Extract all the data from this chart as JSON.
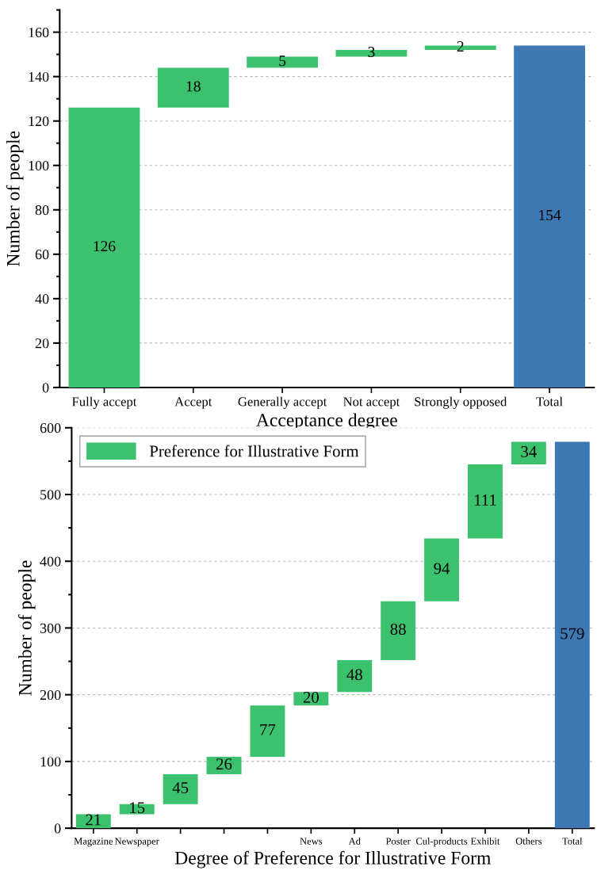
{
  "chart_data": [
    {
      "type": "bar",
      "xlabel": "Acceptance degree",
      "ylabel": "Number of people",
      "categories": [
        "Fully accept",
        "Accept",
        "Generally accept",
        "Not accept",
        "Strongly opposed",
        "Total"
      ],
      "values": [
        126,
        18,
        5,
        3,
        2,
        154
      ],
      "base": [
        0,
        126,
        144,
        149,
        152,
        0
      ],
      "colors": [
        "#3cc26e",
        "#3cc26e",
        "#3cc26e",
        "#3cc26e",
        "#3cc26e",
        "#3d78b5"
      ],
      "ylim": [
        0,
        170
      ],
      "yticks": [
        0,
        20,
        40,
        60,
        80,
        100,
        120,
        140,
        160
      ],
      "grid": "y",
      "data_labels": true
    },
    {
      "type": "bar",
      "xlabel": "Degree of Preference for Illustrative Form",
      "ylabel": "Number of people",
      "categories": [
        "Magazine",
        "Newspaper",
        null,
        null,
        null,
        "News",
        "Ad",
        "Poster",
        "Cul-products",
        "Exhibit",
        "Others",
        "Total"
      ],
      "series": [
        {
          "name": "Preference for Illustrative Form",
          "values": [
            21,
            15,
            45,
            26,
            77,
            20,
            48,
            88,
            94,
            111,
            34,
            579
          ],
          "base": [
            0,
            21,
            36,
            81,
            107,
            184,
            204,
            252,
            340,
            434,
            545,
            0
          ],
          "colors": [
            "#3cc26e",
            "#3cc26e",
            "#3cc26e",
            "#3cc26e",
            "#3cc26e",
            "#3cc26e",
            "#3cc26e",
            "#3cc26e",
            "#3cc26e",
            "#3cc26e",
            "#3cc26e",
            "#3d78b5"
          ]
        }
      ],
      "ylim": [
        0,
        600
      ],
      "yticks": [
        0,
        100,
        200,
        300,
        400,
        500,
        600
      ],
      "grid": "y",
      "legend": "top left",
      "data_labels": true
    }
  ]
}
